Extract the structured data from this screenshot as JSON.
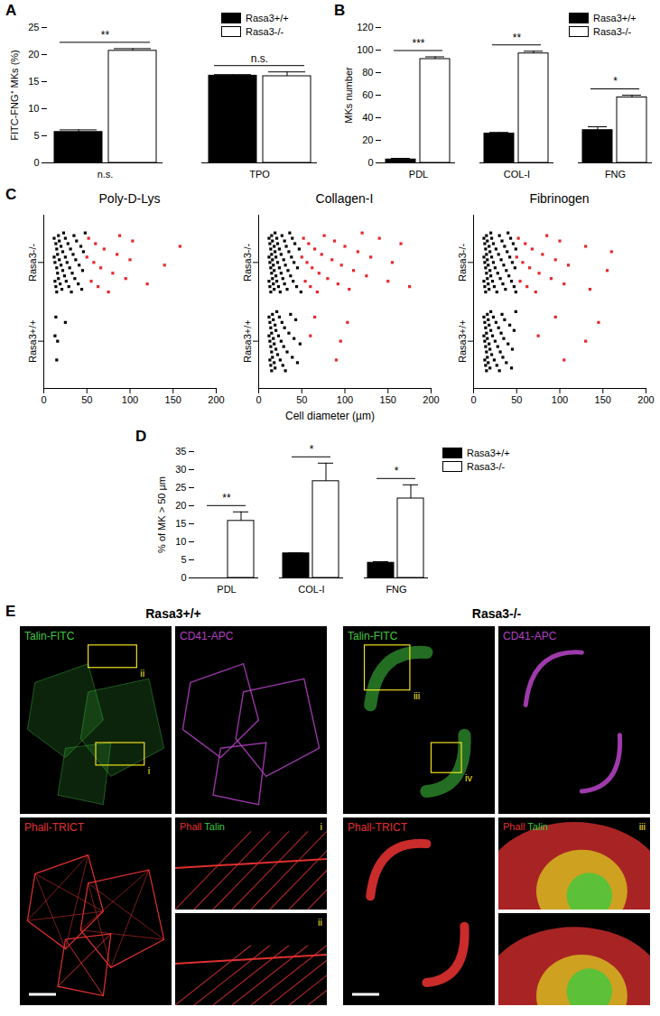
{
  "chart_data": [
    {
      "panel": "A",
      "type": "bar",
      "categories": [
        "n.s.",
        "TPO"
      ],
      "y_label": "FITC-FNG⁺ MKs (%)",
      "ylim": [
        0,
        25
      ],
      "yticks": [
        0,
        5,
        10,
        15,
        20,
        25
      ],
      "legend": "upper right",
      "series": [
        {
          "name": "Rasa3+/+",
          "color": "#000000",
          "values": [
            5.7,
            16.1
          ],
          "errors": [
            0.4,
            0.2
          ]
        },
        {
          "name": "Rasa3-/-",
          "color": "#ffffff",
          "values": [
            20.7,
            16.0
          ],
          "errors": [
            0.4,
            0.8
          ]
        }
      ],
      "annotations": [
        {
          "category": "n.s.",
          "text": "**"
        },
        {
          "category": "TPO",
          "text": "n.s."
        }
      ]
    },
    {
      "panel": "B",
      "type": "bar",
      "categories": [
        "PDL",
        "COL-I",
        "FNG"
      ],
      "y_label": "MKs number",
      "ylim": [
        0,
        120
      ],
      "yticks": [
        0,
        20,
        40,
        60,
        80,
        100,
        120
      ],
      "legend": "upper right",
      "series": [
        {
          "name": "Rasa3+/+",
          "color": "#000000",
          "values": [
            3,
            26,
            29
          ],
          "errors": [
            1,
            1,
            3
          ]
        },
        {
          "name": "Rasa3-/-",
          "color": "#ffffff",
          "values": [
            92,
            97,
            58
          ],
          "errors": [
            2,
            2,
            2
          ]
        }
      ],
      "annotations": [
        {
          "category": "PDL",
          "text": "***"
        },
        {
          "category": "COL-I",
          "text": "**"
        },
        {
          "category": "FNG",
          "text": "*"
        }
      ]
    },
    {
      "panel": "C",
      "type": "strip",
      "x_label": "Cell diameter (µm)",
      "xlim": [
        0,
        200
      ],
      "xticks": [
        0,
        50,
        100,
        150,
        200
      ],
      "categories": [
        "Rasa3+/+",
        "Rasa3-/-"
      ],
      "panels": [
        {
          "title": "Poly-D-Lys",
          "series": [
            {
              "name": "Rasa3-/-",
              "color": "#000000",
              "values": [
                12,
                12,
                13,
                13,
                14,
                14,
                15,
                15,
                15,
                16,
                16,
                17,
                17,
                18,
                18,
                19,
                20,
                20,
                21,
                22,
                22,
                23,
                24,
                25,
                25,
                26,
                27,
                28,
                29,
                30,
                31,
                32,
                33,
                34,
                35,
                36,
                37,
                38,
                40,
                41,
                43,
                44,
                45,
                46,
                48
              ]
            },
            {
              "name": "Rasa3-/-",
              "color": "#e8262a",
              "values": [
                50,
                52,
                55,
                58,
                60,
                63,
                66,
                70,
                75,
                80,
                85,
                88,
                95,
                100,
                103,
                120,
                140,
                158
              ]
            },
            {
              "name": "Rasa3+/+",
              "color": "#000000",
              "values": [
                13,
                14,
                15,
                16,
                25
              ]
            }
          ]
        },
        {
          "title": "Collagen-I",
          "series": [
            {
              "name": "Rasa3-/-",
              "color": "#000000",
              "values": [
                12,
                12,
                12,
                13,
                13,
                13,
                14,
                14,
                14,
                15,
                15,
                15,
                16,
                16,
                16,
                17,
                17,
                18,
                18,
                18,
                19,
                19,
                20,
                20,
                21,
                21,
                22,
                22,
                23,
                24,
                24,
                25,
                26,
                26,
                27,
                28,
                29,
                30,
                30,
                31,
                32,
                33,
                34,
                35,
                36,
                37,
                38,
                39,
                40,
                41,
                42,
                44,
                45,
                47,
                49
              ]
            },
            {
              "name": "Rasa3-/-",
              "color": "#e8262a",
              "values": [
                50,
                52,
                54,
                56,
                58,
                60,
                62,
                65,
                68,
                70,
                73,
                76,
                80,
                85,
                88,
                92,
                96,
                100,
                105,
                110,
                115,
                120,
                125,
                130,
                140,
                150,
                155,
                165,
                175
              ]
            },
            {
              "name": "Rasa3+/+",
              "color": "#000000",
              "values": [
                12,
                12,
                13,
                13,
                13,
                14,
                14,
                14,
                15,
                15,
                15,
                16,
                16,
                17,
                17,
                18,
                18,
                19,
                19,
                20,
                20,
                21,
                22,
                23,
                24,
                25,
                26,
                27,
                28,
                29,
                30,
                31,
                33,
                35,
                37,
                39,
                41,
                43,
                45,
                48
              ]
            },
            {
              "name": "Rasa3+/+",
              "color": "#e8262a",
              "values": [
                60,
                65,
                90,
                95,
                103
              ]
            }
          ]
        },
        {
          "title": "Fibrinogen",
          "series": [
            {
              "name": "Rasa3-/-",
              "color": "#000000",
              "values": [
                12,
                12,
                12,
                13,
                13,
                13,
                14,
                14,
                14,
                15,
                15,
                15,
                16,
                16,
                16,
                17,
                17,
                18,
                18,
                19,
                19,
                20,
                20,
                21,
                21,
                22,
                23,
                23,
                24,
                25,
                26,
                27,
                28,
                29,
                30,
                31,
                32,
                33,
                34,
                35,
                36,
                37,
                38,
                39,
                40,
                41,
                42,
                43,
                44,
                45,
                46,
                47,
                48,
                49,
                49
              ]
            },
            {
              "name": "Rasa3-/-",
              "color": "#e8262a",
              "values": [
                50,
                52,
                54,
                57,
                60,
                62,
                65,
                68,
                72,
                76,
                80,
                85,
                90,
                95,
                100,
                105,
                110,
                130,
                135,
                155,
                160
              ]
            },
            {
              "name": "Rasa3+/+",
              "color": "#000000",
              "values": [
                12,
                12,
                13,
                13,
                13,
                14,
                14,
                14,
                15,
                15,
                15,
                16,
                16,
                16,
                17,
                17,
                18,
                18,
                19,
                19,
                20,
                20,
                21,
                22,
                23,
                24,
                25,
                26,
                27,
                28,
                29,
                30,
                31,
                32,
                33,
                34,
                35,
                36,
                38,
                40,
                42,
                44,
                45,
                47,
                49
              ]
            },
            {
              "name": "Rasa3+/+",
              "color": "#e8262a",
              "values": [
                75,
                95,
                105,
                130,
                145
              ]
            }
          ]
        }
      ]
    },
    {
      "panel": "D",
      "type": "bar",
      "categories": [
        "PDL",
        "COL-I",
        "FNG"
      ],
      "y_label": "% of MK > 50 µm",
      "ylim": [
        0,
        35
      ],
      "yticks": [
        0,
        5,
        10,
        15,
        20,
        25,
        30,
        35
      ],
      "legend": "upper right",
      "series": [
        {
          "name": "Rasa3+/+",
          "color": "#000000",
          "values": [
            0,
            6.8,
            4.2
          ],
          "errors": [
            0,
            0.1,
            0.3
          ]
        },
        {
          "name": "Rasa3-/-",
          "color": "#ffffff",
          "values": [
            15.8,
            26.8,
            22
          ],
          "errors": [
            2.5,
            5,
            3.8
          ]
        }
      ],
      "annotations": [
        {
          "category": "PDL",
          "text": "**"
        },
        {
          "category": "COL-I",
          "text": "*"
        },
        {
          "category": "FNG",
          "text": "*"
        }
      ]
    }
  ],
  "panel_E": {
    "panel": "E",
    "type": "image_grid",
    "columns": [
      {
        "title": "Rasa3+/+",
        "tiles": [
          {
            "label": [
              {
                "text": "Talin-FITC",
                "color": "#40c840"
              }
            ],
            "boxes": [
              "ii",
              "i"
            ]
          },
          {
            "label": [
              {
                "text": "CD41-APC",
                "color": "#b040c0"
              }
            ]
          },
          {
            "label": [
              {
                "text": "Phall-TRICT",
                "color": "#e03030"
              }
            ]
          },
          {
            "label": [
              {
                "text": "Phall",
                "color": "#e03030"
              },
              {
                "text": "Talin",
                "color": "#40c840"
              }
            ],
            "insets": [
              "i",
              "ii"
            ]
          }
        ]
      },
      {
        "title": "Rasa3-/-",
        "tiles": [
          {
            "label": [
              {
                "text": "Talin-FITC",
                "color": "#40c840"
              }
            ],
            "boxes": [
              "iii",
              "iv"
            ]
          },
          {
            "label": [
              {
                "text": "CD41-APC",
                "color": "#b040c0"
              }
            ]
          },
          {
            "label": [
              {
                "text": "Phall-TRICT",
                "color": "#e03030"
              }
            ]
          },
          {
            "label": [
              {
                "text": "Phall",
                "color": "#e03030"
              },
              {
                "text": "Talin",
                "color": "#40c840"
              }
            ],
            "insets": [
              "iii",
              null
            ]
          }
        ]
      }
    ]
  }
}
